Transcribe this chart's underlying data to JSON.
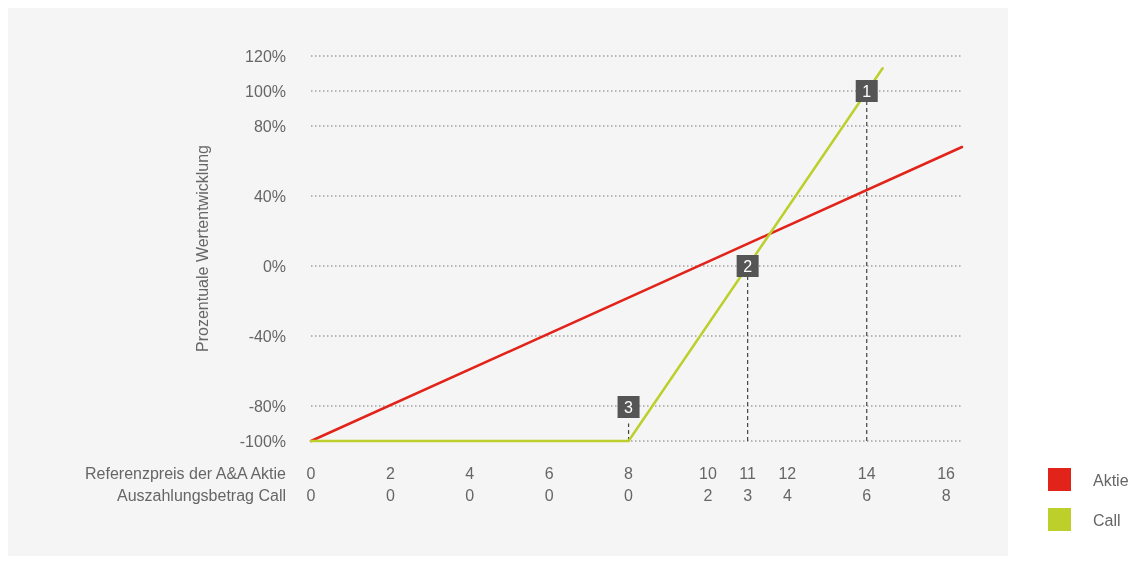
{
  "chart_data": {
    "type": "line",
    "xlabel": "Referenzpreis der A&A Aktie",
    "ylabel": "Prozentuale Wertentwicklung",
    "xlim": [
      0,
      16.4
    ],
    "xticks": [
      0,
      2,
      4,
      6,
      8,
      10,
      11,
      12,
      14,
      16
    ],
    "ylim": [
      -100,
      120
    ],
    "yticks": [
      {
        "value": -100,
        "label": "-100%"
      },
      {
        "value": -80,
        "label": "-80%"
      },
      {
        "value": -40,
        "label": "-40%"
      },
      {
        "value": 0,
        "label": "0%"
      },
      {
        "value": 40,
        "label": "40%"
      },
      {
        "value": 80,
        "label": "80%"
      },
      {
        "value": 100,
        "label": "100%"
      },
      {
        "value": 120,
        "label": "120%"
      }
    ],
    "grid": "y",
    "legend": "bottom right",
    "line_style": "solid",
    "series": [
      {
        "color": "#444444",
        "line_style": "dashed",
        "x": [
          14,
          14
        ],
        "values": [
          -100,
          100
        ]
      },
      {
        "color": "#444444",
        "line_style": "dashed",
        "x": [
          11,
          11
        ],
        "values": [
          -100,
          0
        ]
      },
      {
        "color": "#444444",
        "line_style": "dashed",
        "x": [
          8,
          8
        ],
        "values": [
          -100,
          -90
        ]
      },
      {
        "name": "Aktie",
        "color": "#e2231a",
        "x": [
          0,
          16.4
        ],
        "values": [
          -100,
          68
        ]
      },
      {
        "name": "Call",
        "color": "#bccf2b",
        "x": [
          0,
          8,
          14.4
        ],
        "values": [
          -100,
          -100,
          113
        ]
      }
    ],
    "annotations": [
      {
        "text": "1",
        "x": 14,
        "y": 100
      },
      {
        "text": "2",
        "x": 11,
        "y": 0
      },
      {
        "text": "3",
        "x": 8,
        "y": -100
      },
      "Auszahlungsbetrag Call",
      "0",
      "0",
      "0",
      "0",
      "0",
      "2",
      "3",
      "4",
      "6",
      "8"
    ]
  }
}
